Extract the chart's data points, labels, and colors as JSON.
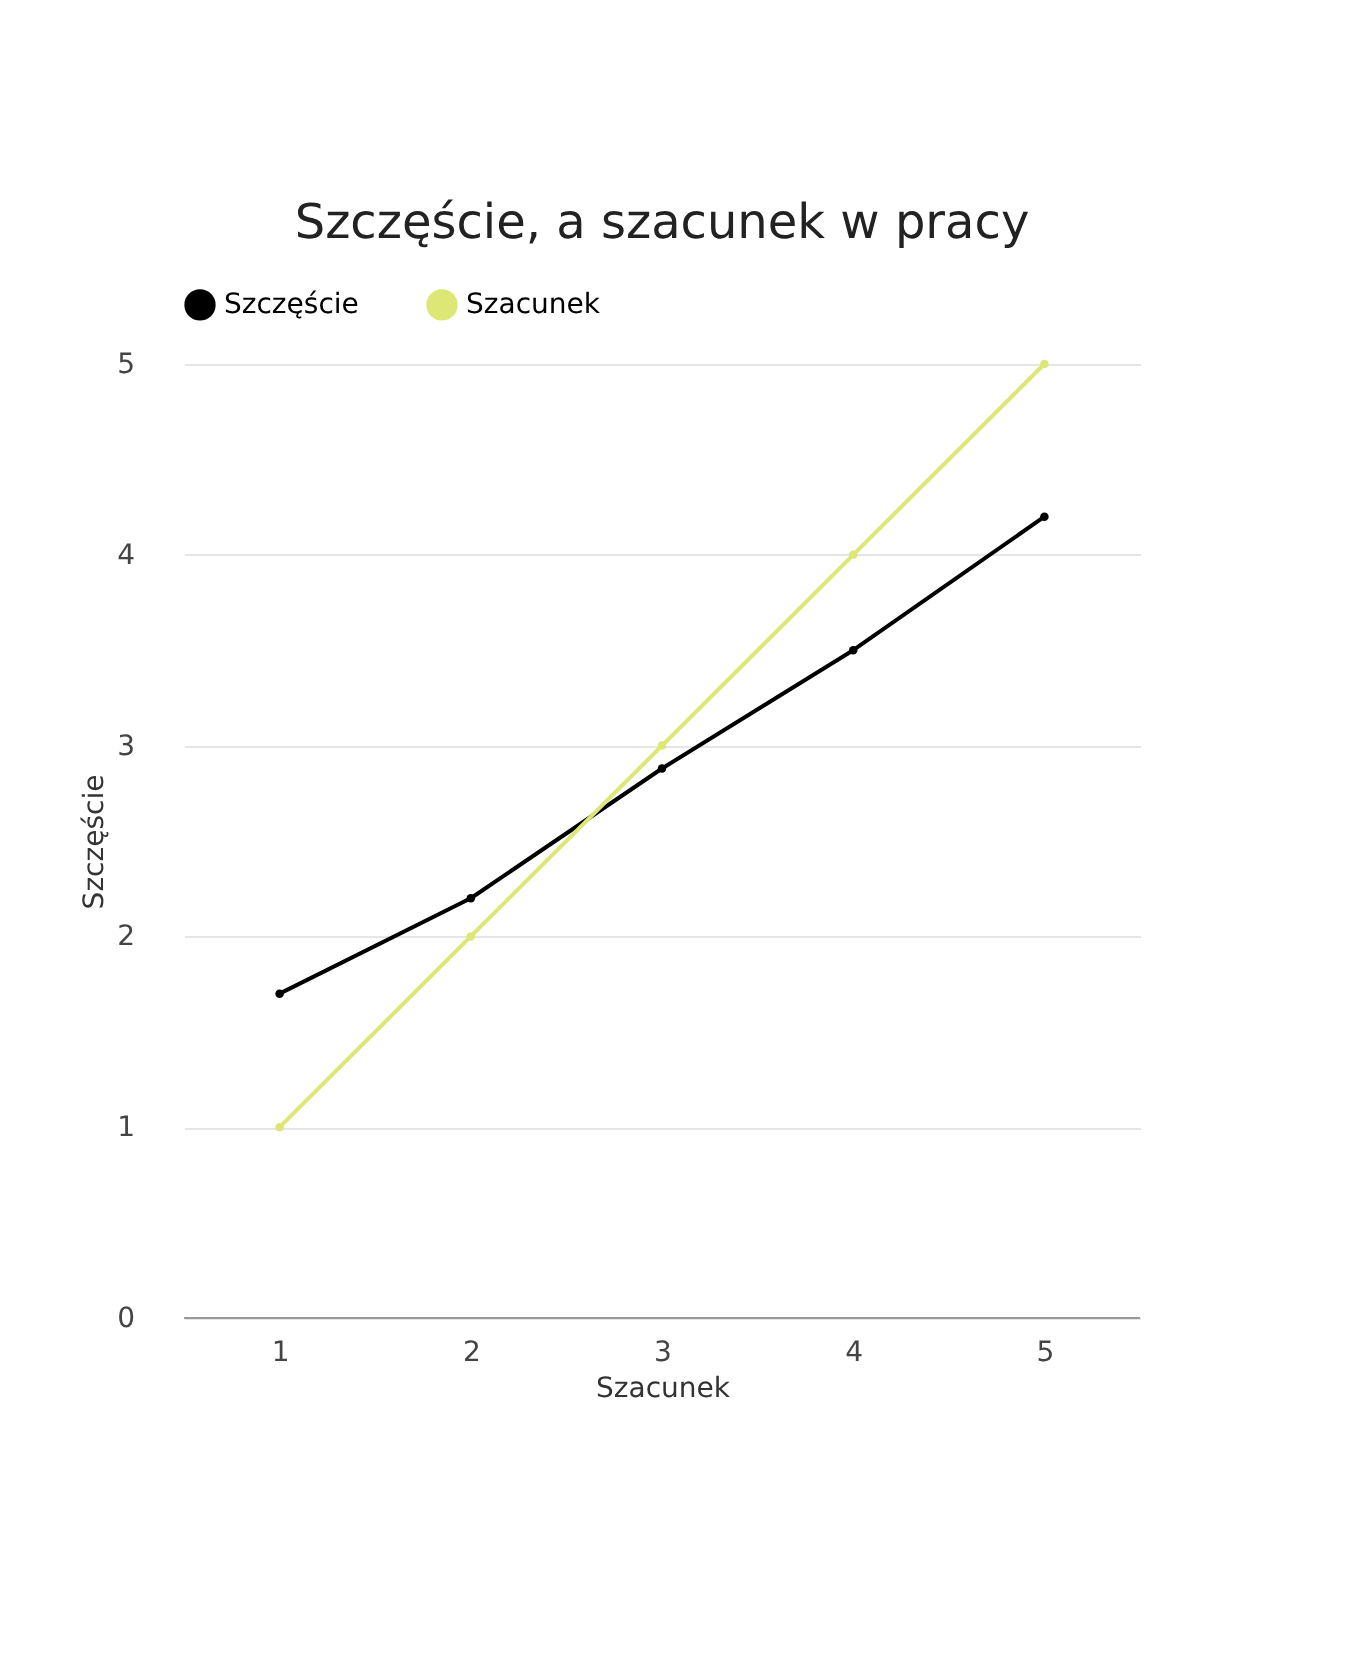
{
  "chart_data": {
    "type": "line",
    "title": "Szczęście, a szacunek w pracy",
    "xlabel": "Szacunek",
    "ylabel": "Szczęście",
    "x": [
      1,
      2,
      3,
      4,
      5
    ],
    "series": [
      {
        "name": "Szczęście",
        "color": "#000000",
        "values": [
          1.7,
          2.2,
          2.88,
          3.5,
          4.2
        ]
      },
      {
        "name": "Szacunek",
        "color": "#dce775",
        "values": [
          1,
          2,
          3,
          4,
          5
        ]
      }
    ],
    "xlim": [
      0.5,
      5.5
    ],
    "xticks": [
      1,
      2,
      3,
      4,
      5
    ],
    "ylim": [
      0,
      5
    ],
    "yticks": [
      0,
      1,
      2,
      3,
      4,
      5
    ],
    "grid": "y",
    "legend": "top",
    "marker": "circle",
    "line_style": "solid"
  }
}
